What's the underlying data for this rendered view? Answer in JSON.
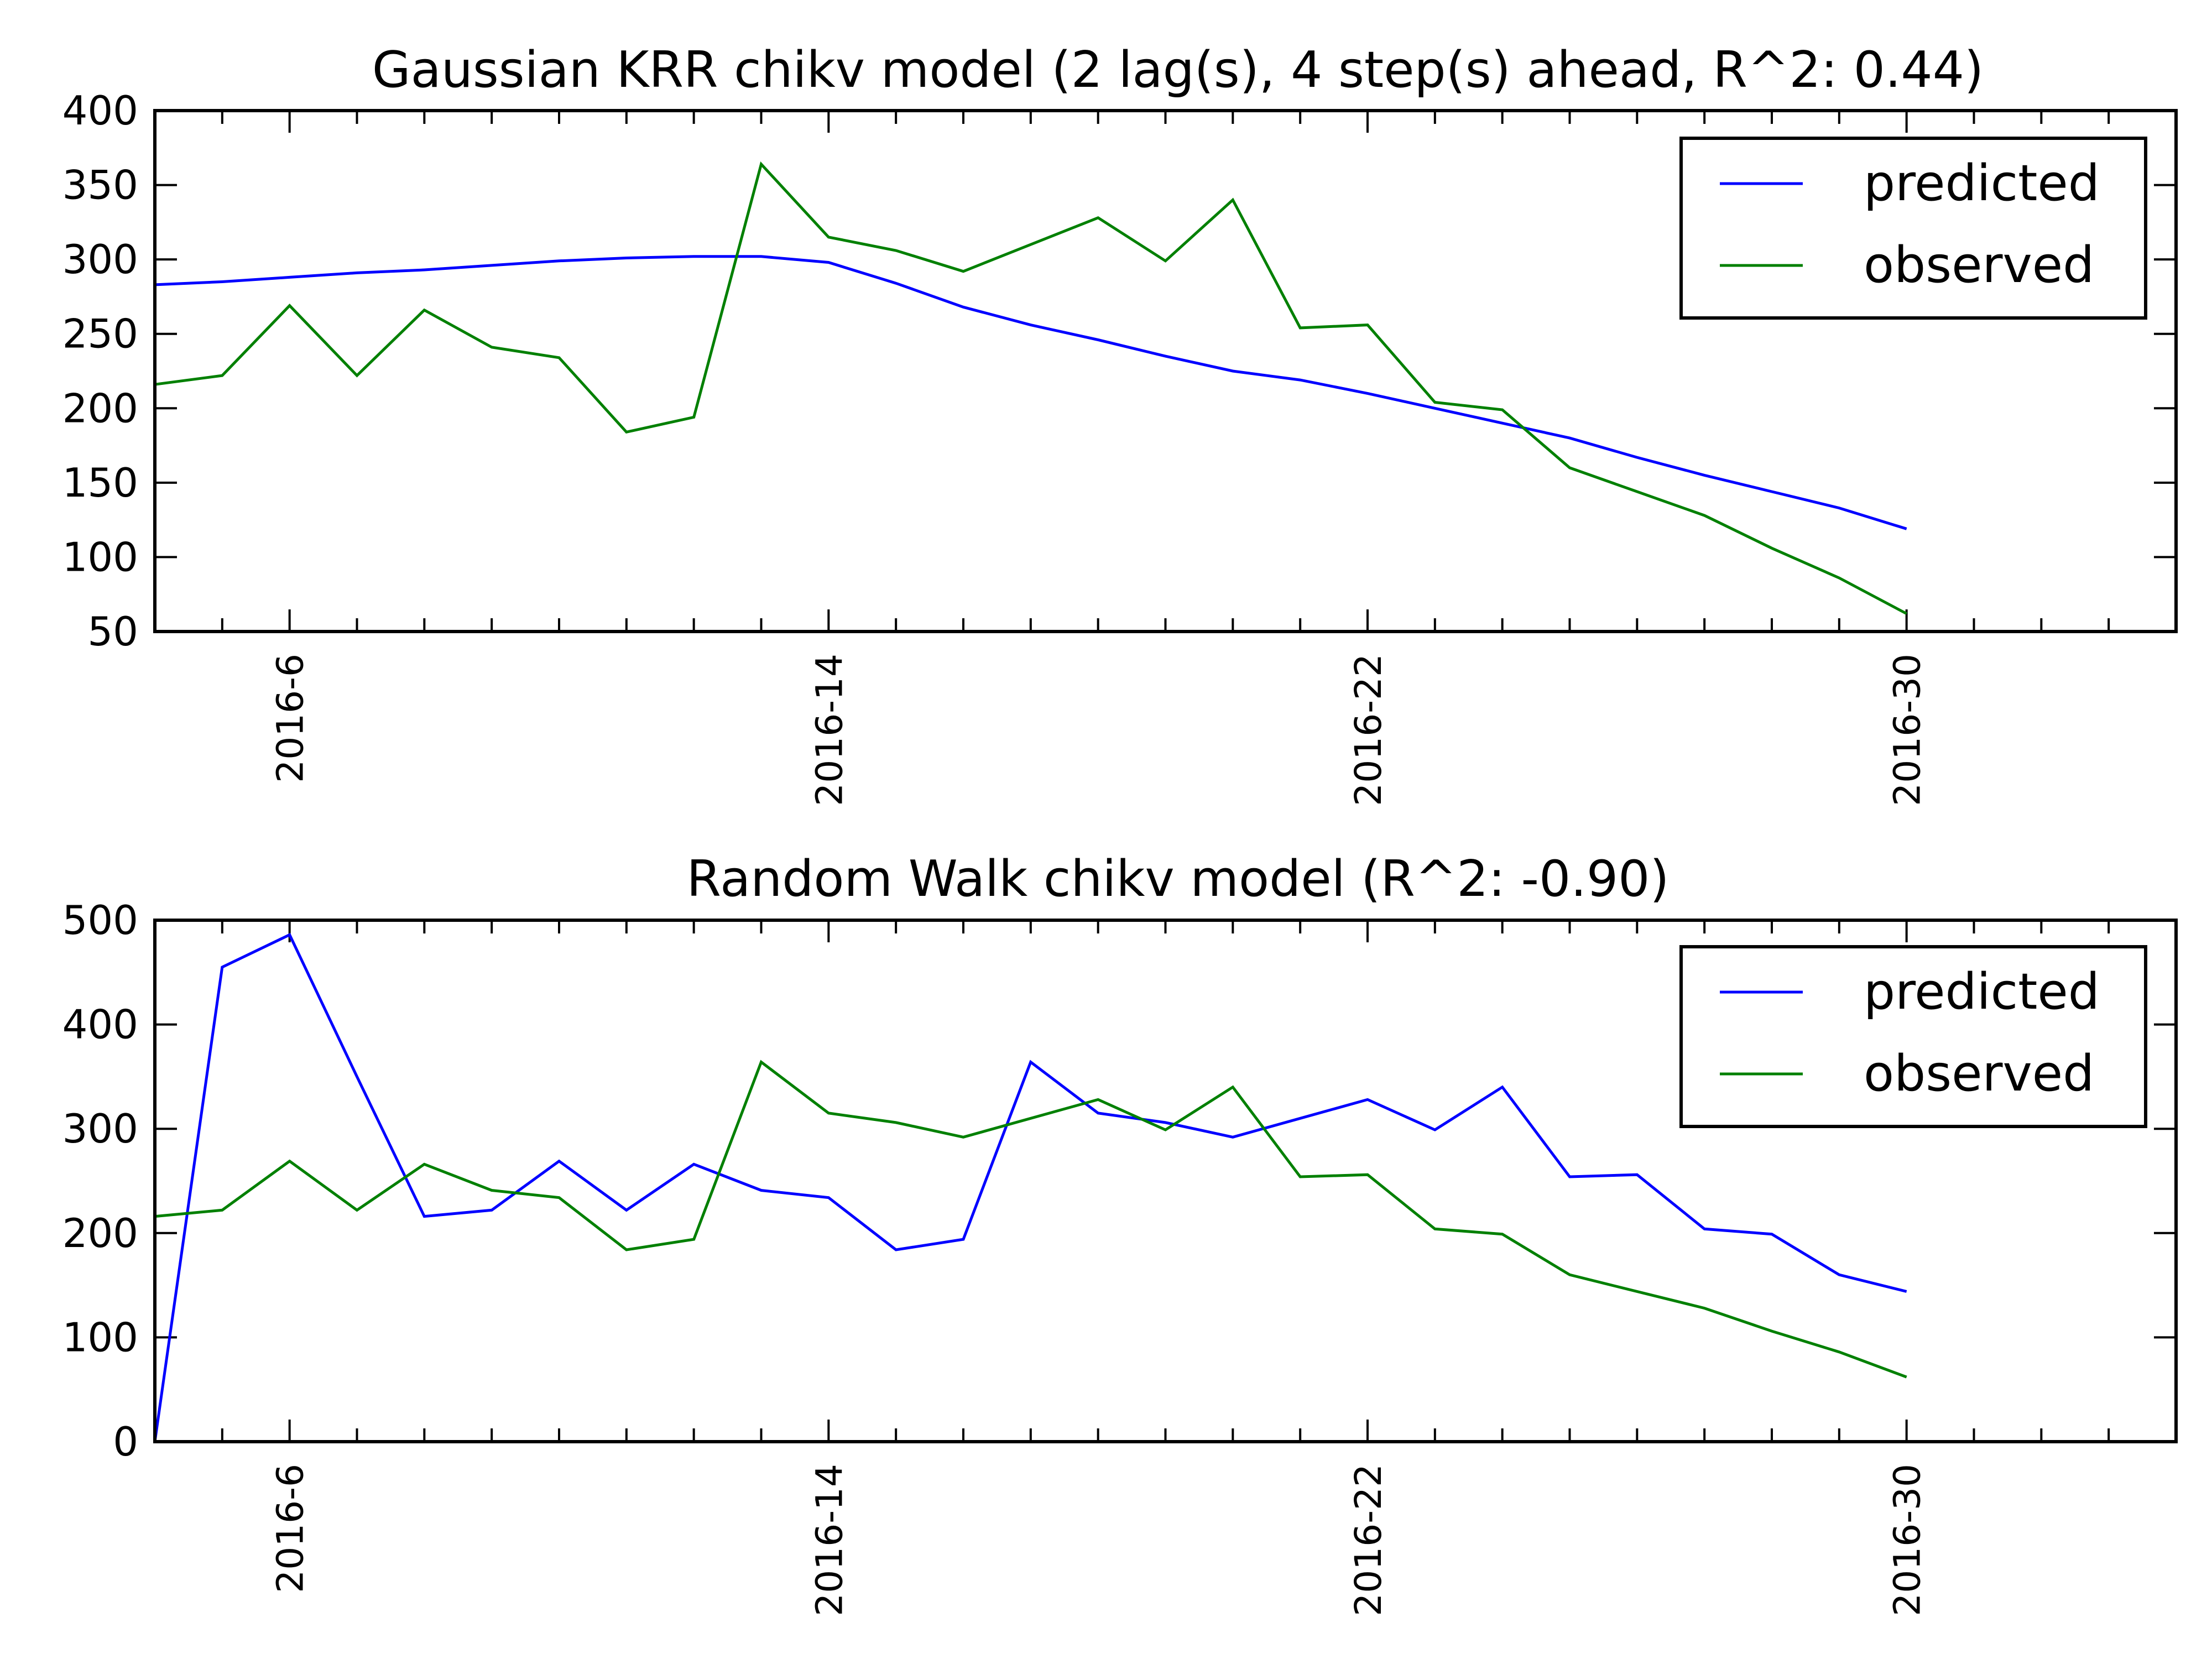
{
  "colors": {
    "predicted": "#0000ff",
    "observed": "#008000",
    "axes": "#000000",
    "background": "#ffffff"
  },
  "legend_position": "top-right",
  "chart_data": [
    {
      "type": "line",
      "title": "Gaussian KRR chikv model (2 lag(s), 4 step(s) ahead, R^2: 0.44)",
      "xlabel": "",
      "ylabel": "",
      "x": [
        4,
        5,
        6,
        7,
        8,
        9,
        10,
        11,
        12,
        13,
        14,
        15,
        16,
        17,
        18,
        19,
        20,
        21,
        22,
        23,
        24,
        25,
        26,
        27,
        28,
        29,
        30
      ],
      "xlim": [
        4,
        34
      ],
      "x_ticks": [
        6,
        14,
        22,
        30
      ],
      "x_tick_labels": [
        "2016-6",
        "2016-14",
        "2016-22",
        "2016-30"
      ],
      "ylim": [
        50,
        400
      ],
      "y_ticks": [
        50,
        100,
        150,
        200,
        250,
        300,
        350,
        400
      ],
      "grid": false,
      "series": [
        {
          "name": "predicted",
          "color_key": "predicted",
          "values": [
            283,
            285,
            288,
            291,
            293,
            296,
            299,
            301,
            302,
            302,
            298,
            284,
            268,
            256,
            246,
            235,
            225,
            219,
            210,
            200,
            190,
            180,
            167,
            155,
            144,
            133,
            119
          ]
        },
        {
          "name": "observed",
          "color_key": "observed",
          "values": [
            216,
            222,
            269,
            222,
            266,
            241,
            234,
            184,
            194,
            364,
            315,
            306,
            292,
            310,
            328,
            299,
            340,
            254,
            256,
            204,
            199,
            160,
            144,
            128,
            106,
            86,
            62
          ]
        }
      ]
    },
    {
      "type": "line",
      "title": "Random Walk chikv model (R^2: -0.90)",
      "xlabel": "",
      "ylabel": "",
      "x": [
        4,
        5,
        6,
        7,
        8,
        9,
        10,
        11,
        12,
        13,
        14,
        15,
        16,
        17,
        18,
        19,
        20,
        21,
        22,
        23,
        24,
        25,
        26,
        27,
        28,
        29,
        30
      ],
      "xlim": [
        4,
        34
      ],
      "x_ticks": [
        6,
        14,
        22,
        30
      ],
      "x_tick_labels": [
        "2016-6",
        "2016-14",
        "2016-22",
        "2016-30"
      ],
      "ylim": [
        0,
        500
      ],
      "y_ticks": [
        0,
        100,
        200,
        300,
        400,
        500
      ],
      "grid": false,
      "series": [
        {
          "name": "predicted",
          "color_key": "predicted",
          "values": [
            0,
            455,
            486,
            350,
            216,
            222,
            269,
            222,
            266,
            241,
            234,
            184,
            194,
            364,
            315,
            306,
            292,
            310,
            328,
            299,
            340,
            254,
            256,
            204,
            199,
            160,
            144
          ]
        },
        {
          "name": "observed",
          "color_key": "observed",
          "values": [
            216,
            222,
            269,
            222,
            266,
            241,
            234,
            184,
            194,
            364,
            315,
            306,
            292,
            310,
            328,
            299,
            340,
            254,
            256,
            204,
            199,
            160,
            144,
            128,
            106,
            86,
            62
          ]
        }
      ]
    }
  ]
}
